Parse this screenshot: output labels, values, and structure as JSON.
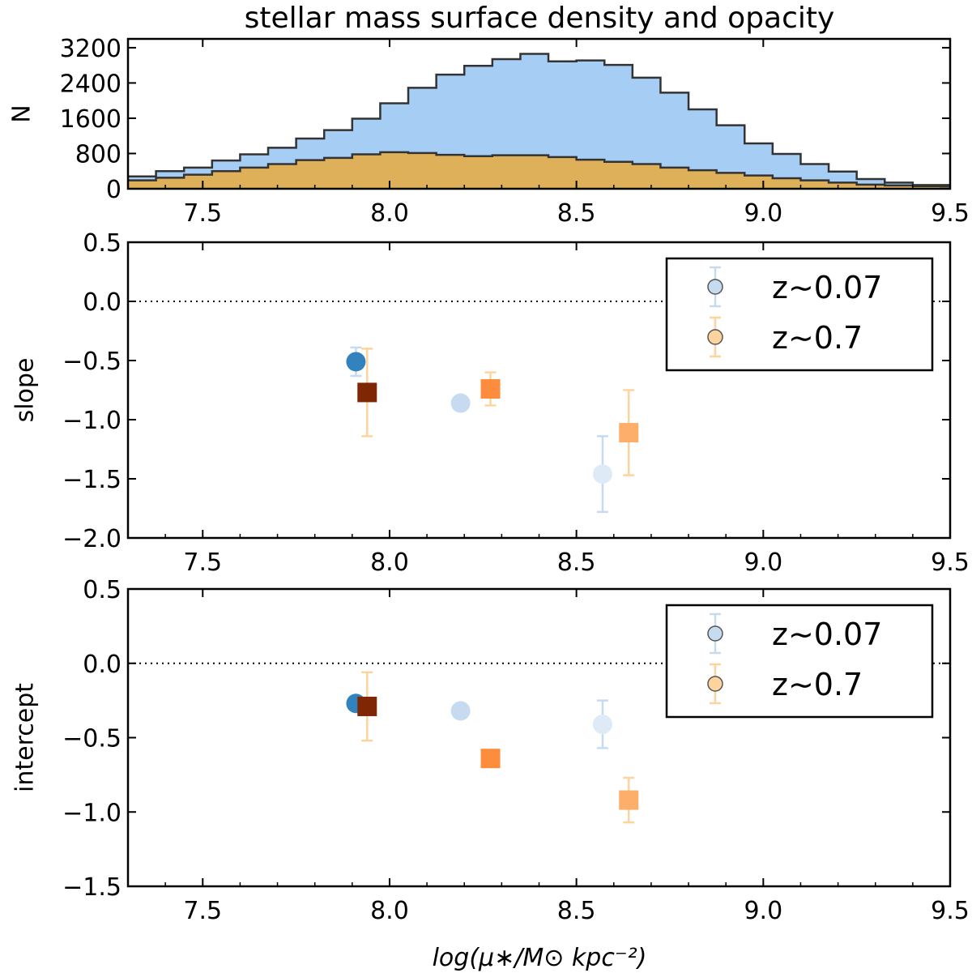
{
  "chart_data": [
    {
      "type": "histogram",
      "title": "stellar mass surface density and opacity",
      "ylabel": "N",
      "xlabel": "",
      "xlim": [
        7.3,
        9.5
      ],
      "ylim": [
        0,
        3400
      ],
      "xticks": [
        "7.5",
        "8.0",
        "8.5",
        "9.0",
        "9.5"
      ],
      "yticks": [
        "0",
        "800",
        "1600",
        "2400",
        "3200"
      ],
      "bin_edges": [
        7.3,
        7.375,
        7.45,
        7.525,
        7.6,
        7.675,
        7.75,
        7.825,
        7.9,
        7.975,
        8.05,
        8.125,
        8.2,
        8.275,
        8.35,
        8.425,
        8.5,
        8.575,
        8.65,
        8.725,
        8.8,
        8.875,
        8.95,
        9.025,
        9.1,
        9.175,
        9.25,
        9.325,
        9.4,
        9.475,
        9.5
      ],
      "series": [
        {
          "name": "z~0.07",
          "color": "#a6cef5",
          "values": [
            280,
            400,
            480,
            640,
            780,
            930,
            1140,
            1330,
            1590,
            1940,
            2290,
            2590,
            2790,
            2940,
            3060,
            2890,
            2910,
            2810,
            2520,
            2180,
            1800,
            1440,
            1030,
            790,
            560,
            390,
            220,
            140,
            85,
            85
          ]
        },
        {
          "name": "z~0.7",
          "color": "#dfb05a",
          "values": [
            190,
            250,
            320,
            400,
            480,
            560,
            650,
            700,
            780,
            830,
            810,
            770,
            740,
            760,
            760,
            720,
            660,
            610,
            560,
            480,
            420,
            360,
            300,
            240,
            190,
            140,
            95,
            75,
            60,
            55
          ]
        }
      ]
    },
    {
      "type": "scatter",
      "ylabel": "slope",
      "xlabel": "",
      "xlim": [
        7.3,
        9.5
      ],
      "ylim": [
        -2.0,
        0.5
      ],
      "xticks": [
        "7.5",
        "8.0",
        "8.5",
        "9.0",
        "9.5"
      ],
      "yticks": [
        "0.5",
        "0.0",
        "−0.5",
        "−1.0",
        "−1.5",
        "−2.0"
      ],
      "reference_line_y": 0.0,
      "legend": {
        "position": "top-right",
        "entries": [
          {
            "label": "z∼0.07",
            "color": "#c6dbef"
          },
          {
            "label": "z∼0.7",
            "color": "#fdd49e"
          }
        ]
      },
      "series": [
        {
          "name": "z~0.07",
          "marker": "circle",
          "points": [
            {
              "x": 7.91,
              "y": -0.51,
              "err": 0.12,
              "color": "#3182bd"
            },
            {
              "x": 8.19,
              "y": -0.86,
              "err": 0.06,
              "color": "#c6dbef"
            },
            {
              "x": 8.57,
              "y": -1.46,
              "err": 0.32,
              "color": "#deebf7"
            }
          ]
        },
        {
          "name": "z~0.7",
          "marker": "square",
          "points": [
            {
              "x": 7.94,
              "y": -0.77,
              "err": 0.37,
              "color": "#7f2704"
            },
            {
              "x": 8.27,
              "y": -0.74,
              "err": 0.14,
              "color": "#fd8d3c"
            },
            {
              "x": 8.64,
              "y": -1.11,
              "err": 0.36,
              "color": "#fdae6b"
            }
          ]
        }
      ]
    },
    {
      "type": "scatter",
      "ylabel": "intercept",
      "xlabel": "log(μ∗/M⊙ kpc⁻²)",
      "xlim": [
        7.3,
        9.5
      ],
      "ylim": [
        -1.5,
        0.5
      ],
      "xticks": [
        "7.5",
        "8.0",
        "8.5",
        "9.0",
        "9.5"
      ],
      "yticks": [
        "0.5",
        "0.0",
        "−0.5",
        "−1.0",
        "−1.5"
      ],
      "reference_line_y": 0.0,
      "legend": {
        "position": "top-right",
        "entries": [
          {
            "label": "z∼0.07",
            "color": "#c6dbef"
          },
          {
            "label": "z∼0.7",
            "color": "#fdd49e"
          }
        ]
      },
      "series": [
        {
          "name": "z~0.07",
          "marker": "circle",
          "points": [
            {
              "x": 7.91,
              "y": -0.27,
              "err": 0.0,
              "color": "#3182bd"
            },
            {
              "x": 8.19,
              "y": -0.32,
              "err": 0.0,
              "color": "#c6dbef"
            },
            {
              "x": 8.57,
              "y": -0.41,
              "err": 0.16,
              "color": "#deebf7"
            }
          ]
        },
        {
          "name": "z~0.7",
          "marker": "square",
          "points": [
            {
              "x": 7.94,
              "y": -0.29,
              "err": 0.23,
              "color": "#7f2704"
            },
            {
              "x": 8.27,
              "y": -0.64,
              "err": 0.0,
              "color": "#fd8d3c"
            },
            {
              "x": 8.64,
              "y": -0.92,
              "err": 0.15,
              "color": "#fdae6b"
            }
          ]
        }
      ]
    }
  ],
  "colors": {
    "errbar_blue": "#c6dbef",
    "errbar_orange": "#fdd49e",
    "axis": "#000000"
  }
}
